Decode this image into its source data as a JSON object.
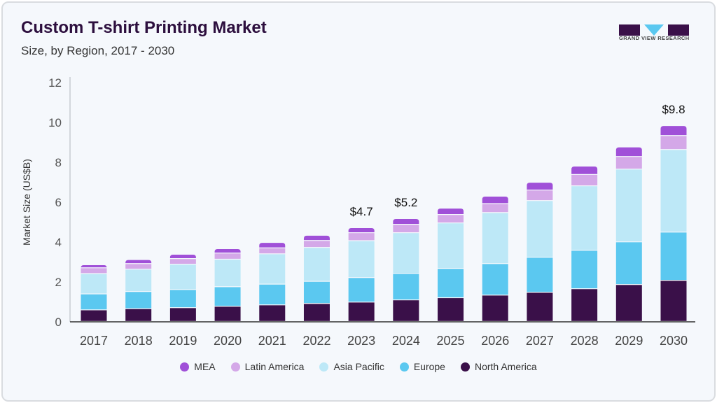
{
  "header": {
    "title": "Custom T-shirt Printing Market",
    "subtitle": "Size, by Region, 2017 - 2030"
  },
  "logo": {
    "text": "GRAND VIEW RESEARCH"
  },
  "chart_data": {
    "type": "bar",
    "stacked": true,
    "title": "Custom T-shirt Printing Market",
    "subtitle": "Size, by Region, 2017 - 2030",
    "xlabel": "",
    "ylabel": "Market Size (US$B)",
    "ylim": [
      0,
      12
    ],
    "yticks": [
      0,
      2,
      4,
      6,
      8,
      10,
      12
    ],
    "grid": false,
    "legend_position": "bottom",
    "categories": [
      "2017",
      "2018",
      "2019",
      "2020",
      "2021",
      "2022",
      "2023",
      "2024",
      "2025",
      "2026",
      "2027",
      "2028",
      "2029",
      "2030"
    ],
    "series": [
      {
        "name": "North America",
        "color": "#3a1049",
        "values": [
          0.58,
          0.64,
          0.69,
          0.76,
          0.83,
          0.9,
          0.97,
          1.08,
          1.19,
          1.32,
          1.46,
          1.64,
          1.85,
          2.06
        ]
      },
      {
        "name": "Europe",
        "color": "#5bc8f0",
        "values": [
          0.8,
          0.86,
          0.91,
          0.98,
          1.04,
          1.11,
          1.23,
          1.33,
          1.47,
          1.58,
          1.76,
          1.93,
          2.14,
          2.42
        ]
      },
      {
        "name": "Asia Pacific",
        "color": "#bde8f7",
        "values": [
          1.02,
          1.12,
          1.27,
          1.38,
          1.52,
          1.7,
          1.85,
          2.04,
          2.28,
          2.56,
          2.84,
          3.23,
          3.65,
          4.14
        ]
      },
      {
        "name": "Latin America",
        "color": "#d4a8e8",
        "values": [
          0.29,
          0.28,
          0.28,
          0.31,
          0.3,
          0.35,
          0.4,
          0.42,
          0.42,
          0.45,
          0.53,
          0.57,
          0.63,
          0.7
        ]
      },
      {
        "name": "MEA",
        "color": "#a050d8",
        "values": [
          0.15,
          0.2,
          0.22,
          0.22,
          0.27,
          0.26,
          0.25,
          0.29,
          0.32,
          0.37,
          0.39,
          0.42,
          0.48,
          0.5
        ]
      }
    ],
    "annotations": [
      {
        "category": "2023",
        "text": "$4.7"
      },
      {
        "category": "2024",
        "text": "$5.2"
      },
      {
        "category": "2030",
        "text": "$9.8"
      }
    ]
  },
  "legend": [
    "MEA",
    "Latin America",
    "Asia Pacific",
    "Europe",
    "North America"
  ]
}
